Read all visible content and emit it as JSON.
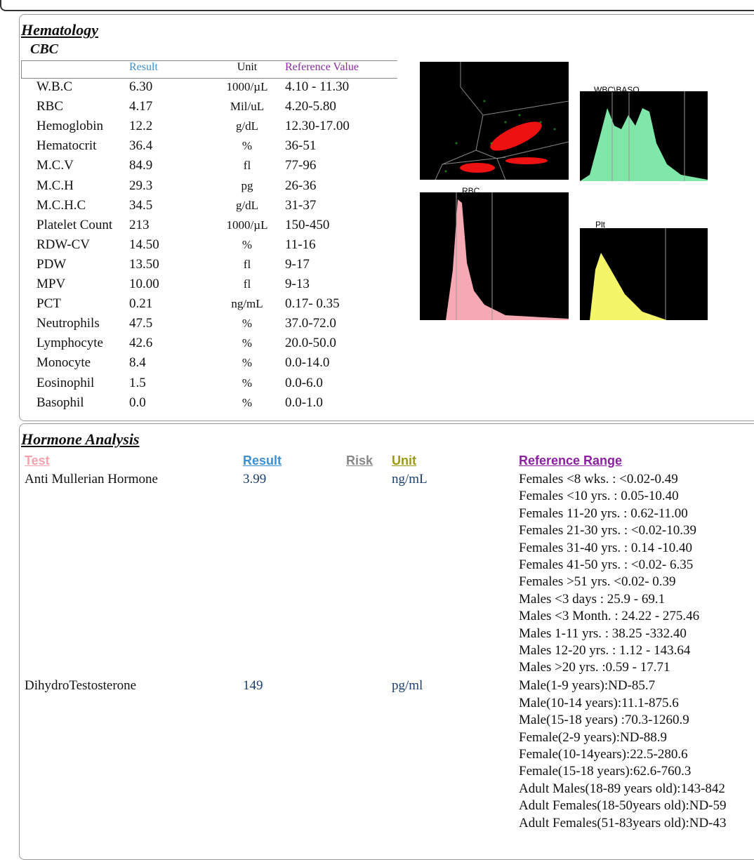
{
  "hematology": {
    "title": "Hematology",
    "subtitle": "CBC",
    "columns": [
      "Result",
      "Unit",
      "Reference Value"
    ],
    "rows": [
      [
        "W.B.C",
        "6.30",
        "1000/µL",
        "4.10 - 11.30"
      ],
      [
        "RBC",
        "4.17",
        "Mil/uL",
        "4.20-5.80"
      ],
      [
        "Hemoglobin",
        "12.2",
        "g/dL",
        "12.30-17.00"
      ],
      [
        "Hematocrit",
        "36.4",
        "%",
        "36-51"
      ],
      [
        "M.C.V",
        "84.9",
        "fl",
        "77-96"
      ],
      [
        "M.C.H",
        "29.3",
        "pg",
        "26-36"
      ],
      [
        "M.C.H.C",
        "34.5",
        "g/dL",
        "31-37"
      ],
      [
        "Platelet Count",
        "213",
        "1000/µL",
        "150-450"
      ],
      [
        "RDW-CV",
        "14.50",
        "%",
        "11-16"
      ],
      [
        "PDW",
        "13.50",
        "fl",
        "9-17"
      ],
      [
        "MPV",
        "10.00",
        "fl",
        "9-13"
      ],
      [
        "PCT",
        "0.21",
        "ng/mL",
        "0.17- 0.35"
      ],
      [
        "Neutrophils",
        "47.5",
        "%",
        "37.0-72.0"
      ],
      [
        "Lymphocyte",
        "42.6",
        "%",
        "20.0-50.0"
      ],
      [
        "Monocyte",
        "8.4",
        "%",
        "0.0-14.0"
      ],
      [
        "Eosinophil",
        "1.5",
        "%",
        "0.0-6.0"
      ],
      [
        "Basophil",
        "0.0",
        "%",
        "0.0-1.0"
      ]
    ]
  },
  "graphs": {
    "wbc": "WBC\\BASO",
    "rbc": "RBC",
    "plt": "Plt"
  },
  "hormones": {
    "title": "Hormone Analysis",
    "columns": [
      "Test",
      "Result",
      "Risk",
      "Unit",
      "Reference Range"
    ],
    "rows": [
      {
        "test": "Anti Mullerian Hormone",
        "result": "3.99",
        "unit": "ng/mL",
        "ranges": [
          "Females <8 wks. : <0.02-0.49",
          "Females <10 yrs. : 0.05-10.40",
          "Females 11-20 yrs. : 0.62-11.00",
          "Females 21-30 yrs. : <0.02-10.39",
          "Females 31-40 yrs. : 0.14 -10.40",
          "Females 41-50 yrs. : <0.02- 6.35",
          "Females >51 yrs. <0.02- 0.39",
          "Males <3 days : 25.9 - 69.1",
          "Males <3 Month. : 24.22 - 275.46",
          "Males 1-11 yrs. : 38.25 -332.40",
          "Males 12-20 yrs. : 1.12 - 143.64",
          "Males >20 yrs. :0.59 - 17.71"
        ]
      },
      {
        "test": "DihydroTestosterone",
        "result": "149",
        "unit": "pg/ml",
        "ranges": [
          "Male(1-9 years):ND-85.7",
          "Male(10-14 years):11.1-875.6",
          "Male(15-18 years) :70.3-1260.9",
          "Female(2-9 years):ND-88.9",
          "Female(10-14years):22.5-280.6",
          "Female(15-18 years):62.6-760.3",
          "Adult Males(18-89 years old):143-842",
          "Adult Females(18-50years old):ND-59",
          "Adult Females(51-83years old):ND-43"
        ]
      }
    ]
  }
}
